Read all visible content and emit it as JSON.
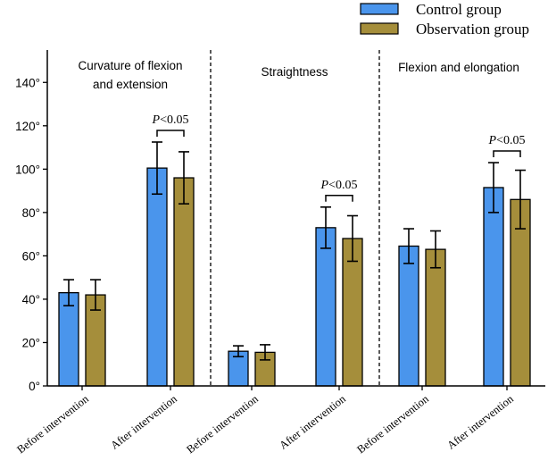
{
  "chart_data": {
    "type": "bar",
    "title": "",
    "xlabel": "",
    "ylabel": "",
    "ylim": [
      0,
      150
    ],
    "yticks": [
      0,
      20,
      40,
      60,
      80,
      100,
      120,
      140
    ],
    "ytick_labels": [
      "0°",
      "20°",
      "40°",
      "60°",
      "80°",
      "100°",
      "120°",
      "140°"
    ],
    "legend": {
      "placement": "top-right",
      "entries": [
        {
          "name": "Control group",
          "color": "#4A95EC"
        },
        {
          "name": "Observation group",
          "color": "#A58E3B"
        }
      ]
    },
    "panels": [
      {
        "title_lines": [
          "Curvature of flexion",
          "and extension"
        ],
        "categories": [
          "Before intervention",
          "After intervention"
        ],
        "series": [
          {
            "name": "Control group",
            "values": [
              43,
              100.5
            ],
            "errors": [
              6,
              12
            ]
          },
          {
            "name": "Observation group",
            "values": [
              42,
              96
            ],
            "errors": [
              7,
              12
            ]
          }
        ],
        "significance": {
          "category_index": 1,
          "label": "<0.05",
          "italic_prefix": "P"
        }
      },
      {
        "title_lines": [
          "Straightness"
        ],
        "categories": [
          "Before intervention",
          "After intervention"
        ],
        "series": [
          {
            "name": "Control group",
            "values": [
              16,
              73
            ],
            "errors": [
              2.5,
              9.5
            ]
          },
          {
            "name": "Observation group",
            "values": [
              15.5,
              68
            ],
            "errors": [
              3.5,
              10.5
            ]
          }
        ],
        "significance": {
          "category_index": 1,
          "label": "<0.05",
          "italic_prefix": "P"
        }
      },
      {
        "title_lines": [
          "Flexion and elongation"
        ],
        "categories": [
          "Before intervention",
          "After intervention"
        ],
        "series": [
          {
            "name": "Control group",
            "values": [
              64.5,
              91.5
            ],
            "errors": [
              8,
              11.5
            ]
          },
          {
            "name": "Observation group",
            "values": [
              63,
              86
            ],
            "errors": [
              8.5,
              13.5
            ]
          }
        ],
        "significance": {
          "category_index": 1,
          "label": "<0.05",
          "italic_prefix": "P"
        }
      }
    ]
  }
}
